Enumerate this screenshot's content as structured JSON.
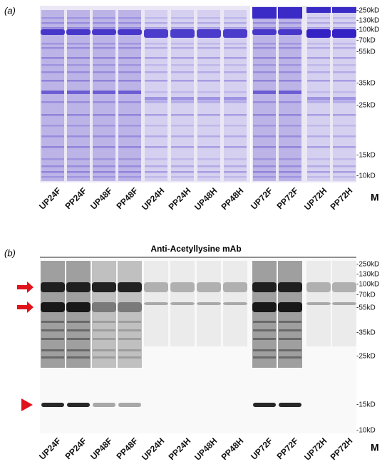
{
  "panel_a": {
    "label": "(a)",
    "lanes": [
      "UP24F",
      "PP24F",
      "UP48F",
      "PP48F",
      "UP24H",
      "PP24H",
      "UP48H",
      "PP48H",
      "UP72F",
      "PP72F",
      "UP72H",
      "PP72H"
    ],
    "marker_lane": "M",
    "markers": [
      "-250kD",
      "-130kD",
      "-100kD",
      "-70kD",
      "-55kD",
      "-35kD",
      "-25kD",
      "-15kD",
      "-10kD"
    ]
  },
  "panel_b": {
    "label": "(b)",
    "title": "Anti-Acetyllysine mAb",
    "lanes": [
      "UP24F",
      "PP24F",
      "UP48F",
      "PP48F",
      "UP24H",
      "PP24H",
      "UP48H",
      "PP48H",
      "UP72F",
      "PP72F",
      "UP72H",
      "PP72H"
    ],
    "marker_lane": "M",
    "markers": [
      "-250kD",
      "-130kD",
      "-100kD",
      "-70kD",
      "-55kD",
      "-35kD",
      "-25kD",
      "-15kD",
      "-10kD"
    ]
  }
}
